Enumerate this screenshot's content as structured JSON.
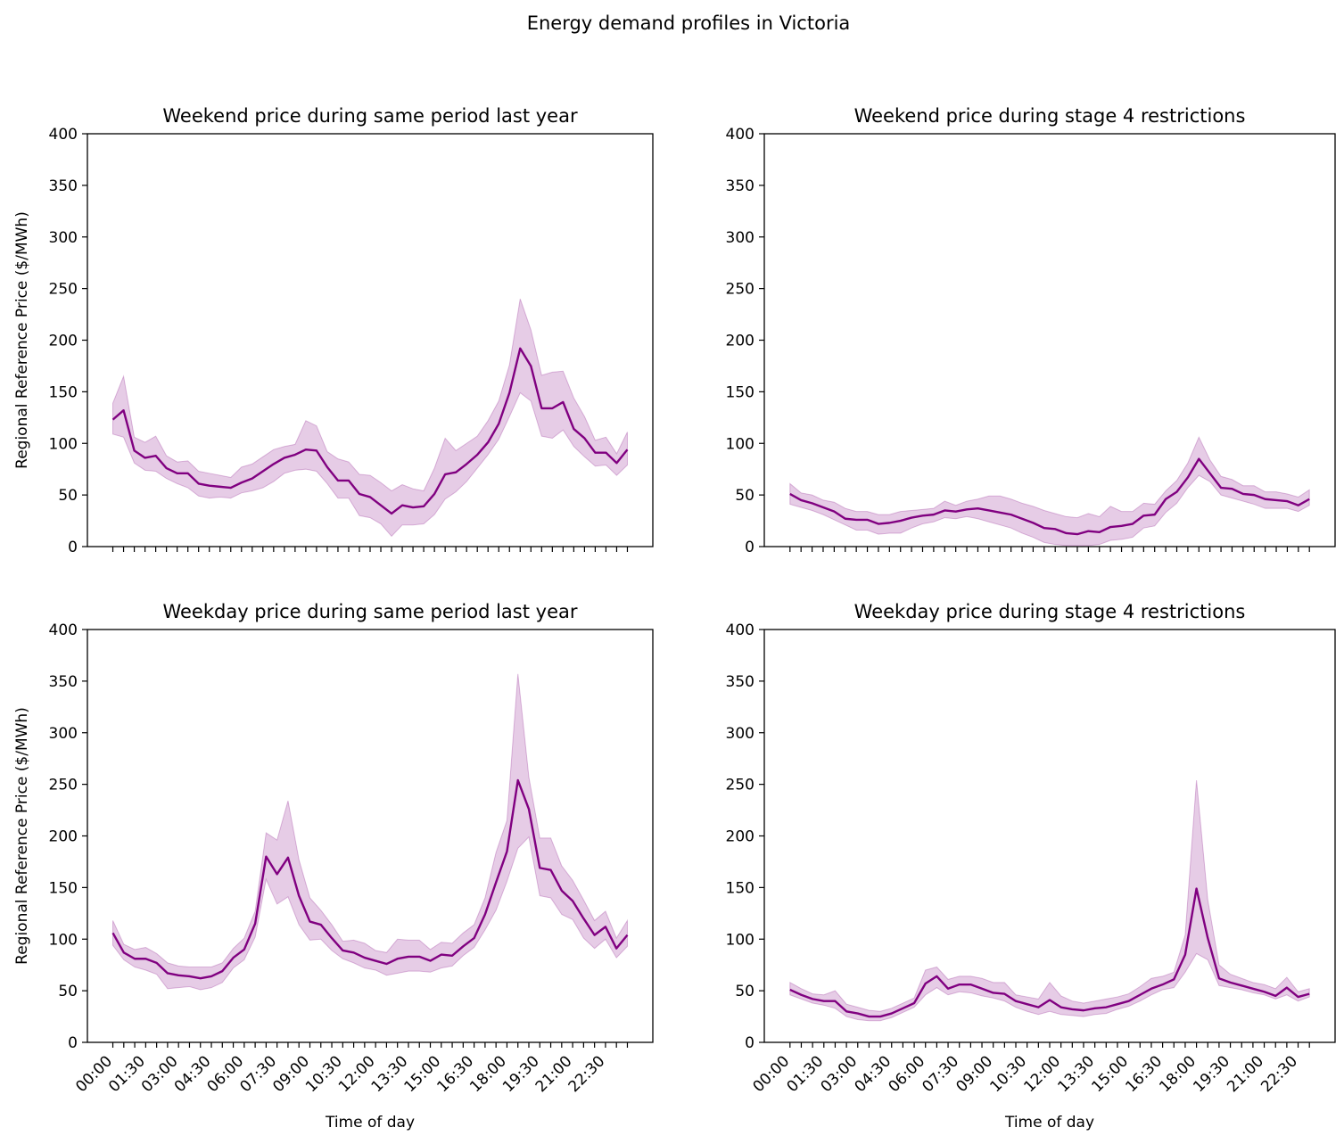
{
  "figure": {
    "suptitle": "Energy demand profiles in Victoria"
  },
  "colors": {
    "line": "#800080",
    "band": "#800080"
  },
  "chart_data": [
    {
      "type": "line",
      "title": "Weekend price during same period last year",
      "xlabel": "",
      "ylabel": "Regional Reference Price ($/MWh)",
      "ylim": [
        0,
        400
      ],
      "yticks": [
        0,
        50,
        100,
        150,
        200,
        250,
        300,
        350,
        400
      ],
      "xtick_labels": [],
      "mean": [
        123,
        132,
        93,
        86,
        88,
        76,
        71,
        71,
        61,
        59,
        58,
        57,
        62,
        66,
        73,
        80,
        86,
        89,
        94,
        93,
        77,
        64,
        64,
        51,
        48,
        40,
        32,
        40,
        38,
        39,
        51,
        70,
        72,
        80,
        89,
        101,
        119,
        149,
        192,
        175,
        134,
        134,
        140,
        114,
        105,
        91,
        91,
        81,
        94
      ],
      "lower": [
        109,
        106,
        81,
        74,
        73,
        66,
        61,
        57,
        49,
        47,
        48,
        47,
        52,
        54,
        57,
        63,
        71,
        74,
        75,
        73,
        61,
        47,
        47,
        30,
        28,
        22,
        10,
        21,
        21,
        22,
        31,
        46,
        53,
        63,
        76,
        89,
        104,
        126,
        149,
        141,
        107,
        105,
        113,
        97,
        87,
        78,
        79,
        69,
        79
      ],
      "upper": [
        139,
        165,
        106,
        101,
        107,
        88,
        82,
        83,
        73,
        71,
        69,
        67,
        77,
        80,
        87,
        94,
        97,
        99,
        122,
        117,
        92,
        85,
        82,
        70,
        69,
        62,
        54,
        60,
        56,
        54,
        76,
        105,
        93,
        100,
        107,
        122,
        141,
        176,
        240,
        210,
        166,
        169,
        170,
        144,
        126,
        103,
        106,
        90,
        111
      ]
    },
    {
      "type": "line",
      "title": "Weekend price during stage 4 restrictions",
      "xlabel": "",
      "ylabel": "",
      "ylim": [
        0,
        400
      ],
      "yticks": [
        0,
        50,
        100,
        150,
        200,
        250,
        300,
        350,
        400
      ],
      "xtick_labels": [],
      "mean": [
        51,
        45,
        42,
        38,
        34,
        27,
        26,
        26,
        22,
        23,
        25,
        28,
        30,
        31,
        35,
        34,
        36,
        37,
        35,
        33,
        31,
        27,
        23,
        18,
        17,
        13,
        12,
        15,
        14,
        19,
        20,
        22,
        30,
        31,
        46,
        53,
        67,
        85,
        71,
        57,
        56,
        51,
        50,
        46,
        45,
        44,
        40,
        46
      ],
      "lower": [
        41,
        38,
        35,
        31,
        26,
        21,
        16,
        16,
        12,
        13,
        13,
        18,
        22,
        24,
        28,
        27,
        29,
        27,
        24,
        21,
        18,
        13,
        9,
        4,
        2,
        1,
        1,
        1,
        2,
        6,
        7,
        9,
        18,
        20,
        33,
        42,
        57,
        69,
        63,
        50,
        47,
        44,
        41,
        37,
        37,
        37,
        34,
        40
      ],
      "upper": [
        61,
        52,
        50,
        45,
        43,
        37,
        34,
        34,
        31,
        31,
        34,
        35,
        36,
        37,
        44,
        40,
        44,
        46,
        49,
        49,
        46,
        42,
        39,
        35,
        32,
        29,
        28,
        32,
        29,
        39,
        34,
        34,
        42,
        41,
        54,
        64,
        81,
        106,
        84,
        68,
        65,
        59,
        59,
        53,
        53,
        51,
        48,
        55
      ]
    },
    {
      "type": "line",
      "title": "Weekday price during same period last year",
      "xlabel": "Time of day",
      "ylabel": "Regional Reference Price ($/MWh)",
      "ylim": [
        0,
        400
      ],
      "yticks": [
        0,
        50,
        100,
        150,
        200,
        250,
        300,
        350,
        400
      ],
      "xtick_labels": [
        "00:00",
        "01:30",
        "03:00",
        "04:30",
        "06:00",
        "07:30",
        "09:00",
        "10:30",
        "12:00",
        "13:30",
        "15:00",
        "16:30",
        "18:00",
        "19:30",
        "21:00",
        "22:30"
      ],
      "xtick_every": 3,
      "mean": [
        106,
        87,
        81,
        81,
        77,
        67,
        65,
        64,
        62,
        64,
        69,
        82,
        90,
        115,
        180,
        163,
        179,
        142,
        117,
        114,
        101,
        89,
        87,
        82,
        79,
        76,
        81,
        83,
        83,
        79,
        85,
        84,
        93,
        101,
        124,
        155,
        185,
        254,
        226,
        169,
        167,
        147,
        137,
        120,
        104,
        112,
        91,
        104
      ],
      "lower": [
        94,
        80,
        73,
        70,
        66,
        52,
        53,
        54,
        51,
        53,
        58,
        72,
        80,
        102,
        158,
        134,
        141,
        114,
        99,
        100,
        89,
        81,
        77,
        72,
        70,
        65,
        67,
        69,
        69,
        68,
        72,
        74,
        84,
        92,
        109,
        128,
        156,
        188,
        199,
        142,
        140,
        124,
        119,
        101,
        91,
        100,
        82,
        93
      ],
      "upper": [
        118,
        95,
        90,
        92,
        86,
        77,
        74,
        73,
        73,
        73,
        77,
        91,
        101,
        127,
        203,
        196,
        234,
        177,
        140,
        128,
        114,
        98,
        99,
        96,
        89,
        87,
        100,
        99,
        99,
        90,
        97,
        96,
        106,
        114,
        140,
        184,
        215,
        357,
        257,
        198,
        198,
        171,
        157,
        138,
        118,
        127,
        101,
        118
      ]
    },
    {
      "type": "line",
      "title": "Weekday price during stage 4 restrictions",
      "xlabel": "Time of day",
      "ylabel": "",
      "ylim": [
        0,
        400
      ],
      "yticks": [
        0,
        50,
        100,
        150,
        200,
        250,
        300,
        350,
        400
      ],
      "xtick_labels": [
        "00:00",
        "01:30",
        "03:00",
        "04:30",
        "06:00",
        "07:30",
        "09:00",
        "10:30",
        "12:00",
        "13:30",
        "15:00",
        "16:30",
        "18:00",
        "19:30",
        "21:00",
        "22:30"
      ],
      "xtick_every": 3,
      "mean": [
        51,
        46,
        42,
        40,
        40,
        30,
        28,
        25,
        25,
        28,
        33,
        38,
        57,
        64,
        52,
        56,
        56,
        52,
        48,
        47,
        40,
        37,
        34,
        41,
        34,
        32,
        31,
        33,
        34,
        37,
        40,
        46,
        52,
        56,
        61,
        85,
        149,
        101,
        62,
        58,
        55,
        52,
        49,
        45,
        53,
        44,
        47
      ],
      "lower": [
        46,
        42,
        38,
        36,
        33,
        25,
        22,
        21,
        21,
        24,
        29,
        34,
        46,
        53,
        46,
        49,
        48,
        45,
        43,
        40,
        34,
        30,
        27,
        30,
        27,
        26,
        25,
        27,
        28,
        32,
        35,
        40,
        46,
        51,
        53,
        68,
        86,
        80,
        55,
        53,
        51,
        48,
        46,
        42,
        46,
        40,
        44
      ],
      "upper": [
        58,
        52,
        47,
        46,
        50,
        37,
        34,
        31,
        30,
        33,
        38,
        43,
        70,
        73,
        61,
        64,
        64,
        62,
        58,
        58,
        46,
        44,
        42,
        58,
        45,
        40,
        38,
        40,
        42,
        44,
        47,
        54,
        62,
        64,
        68,
        104,
        254,
        138,
        75,
        66,
        62,
        58,
        56,
        52,
        63,
        49,
        52
      ]
    }
  ]
}
